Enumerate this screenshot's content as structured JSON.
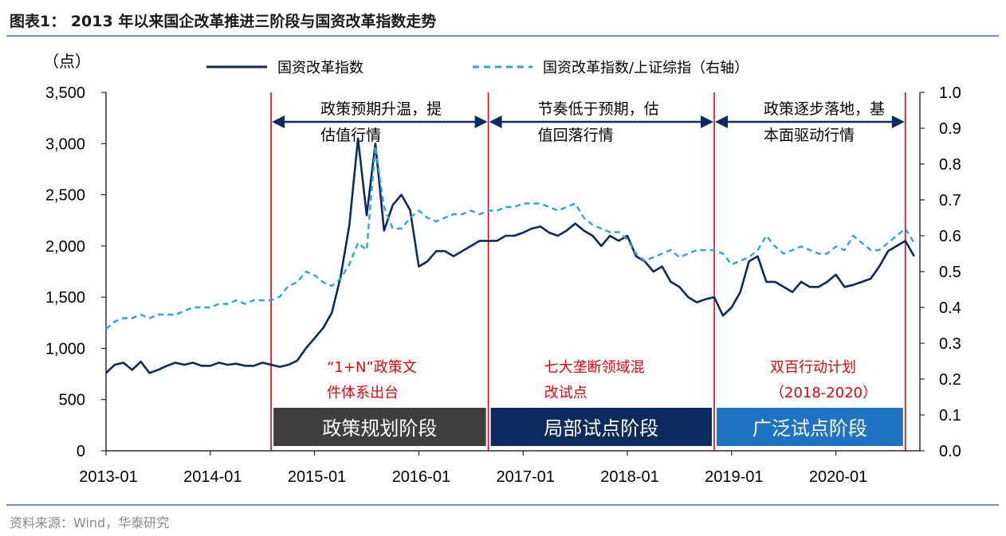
{
  "title": "图表1：    2013 年以来国企改革推进三阶段与国资改革指数走势",
  "source": "资料来源：Wind，华泰研究",
  "chart_data": {
    "type": "line",
    "y_left_unit": "（点）",
    "y_left_range": [
      0,
      3500
    ],
    "y_left_ticks": [
      "0",
      "500",
      "1,000",
      "1,500",
      "2,000",
      "2,500",
      "3,000",
      "3,500"
    ],
    "y_right_range": [
      0,
      1.0
    ],
    "y_right_ticks": [
      "0.0",
      "0.1",
      "0.2",
      "0.3",
      "0.4",
      "0.5",
      "0.6",
      "0.7",
      "0.8",
      "0.9",
      "1.0"
    ],
    "x_ticks": [
      "2013-01",
      "2014-01",
      "2015-01",
      "2016-01",
      "2017-01",
      "2018-01",
      "2019-01",
      "2020-01"
    ],
    "x_range": [
      "2013-01",
      "2020-10"
    ],
    "legend_placement": "top-center",
    "series": [
      {
        "name": "国资改革指数",
        "axis": "left",
        "color": "#0d2a5e",
        "style": "solid",
        "points": [
          [
            "2013-01",
            760
          ],
          [
            "2013-02",
            840
          ],
          [
            "2013-03",
            860
          ],
          [
            "2013-04",
            790
          ],
          [
            "2013-05",
            870
          ],
          [
            "2013-06",
            760
          ],
          [
            "2013-07",
            790
          ],
          [
            "2013-08",
            830
          ],
          [
            "2013-09",
            860
          ],
          [
            "2013-10",
            840
          ],
          [
            "2013-11",
            860
          ],
          [
            "2013-12",
            830
          ],
          [
            "2014-01",
            830
          ],
          [
            "2014-02",
            860
          ],
          [
            "2014-03",
            840
          ],
          [
            "2014-04",
            850
          ],
          [
            "2014-05",
            830
          ],
          [
            "2014-06",
            830
          ],
          [
            "2014-07",
            860
          ],
          [
            "2014-08",
            840
          ],
          [
            "2014-09",
            820
          ],
          [
            "2014-10",
            840
          ],
          [
            "2014-11",
            880
          ],
          [
            "2014-12",
            1000
          ],
          [
            "2015-01",
            1100
          ],
          [
            "2015-02",
            1200
          ],
          [
            "2015-03",
            1350
          ],
          [
            "2015-04",
            1700
          ],
          [
            "2015-05",
            2200
          ],
          [
            "2015-06",
            3050
          ],
          [
            "2015-07",
            2300
          ],
          [
            "2015-08",
            3000
          ],
          [
            "2015-09",
            2150
          ],
          [
            "2015-10",
            2400
          ],
          [
            "2015-11",
            2500
          ],
          [
            "2015-12",
            2350
          ],
          [
            "2016-01",
            1800
          ],
          [
            "2016-02",
            1850
          ],
          [
            "2016-03",
            1950
          ],
          [
            "2016-04",
            1950
          ],
          [
            "2016-05",
            1900
          ],
          [
            "2016-06",
            1950
          ],
          [
            "2016-07",
            2000
          ],
          [
            "2016-08",
            2050
          ],
          [
            "2016-09",
            2050
          ],
          [
            "2016-10",
            2050
          ],
          [
            "2016-11",
            2100
          ],
          [
            "2016-12",
            2100
          ],
          [
            "2017-01",
            2130
          ],
          [
            "2017-02",
            2170
          ],
          [
            "2017-03",
            2190
          ],
          [
            "2017-04",
            2130
          ],
          [
            "2017-05",
            2100
          ],
          [
            "2017-06",
            2150
          ],
          [
            "2017-07",
            2220
          ],
          [
            "2017-08",
            2150
          ],
          [
            "2017-09",
            2100
          ],
          [
            "2017-10",
            2000
          ],
          [
            "2017-11",
            2100
          ],
          [
            "2017-12",
            2050
          ],
          [
            "2018-01",
            2100
          ],
          [
            "2018-02",
            1900
          ],
          [
            "2018-03",
            1850
          ],
          [
            "2018-04",
            1750
          ],
          [
            "2018-05",
            1800
          ],
          [
            "2018-06",
            1650
          ],
          [
            "2018-07",
            1600
          ],
          [
            "2018-08",
            1500
          ],
          [
            "2018-09",
            1450
          ],
          [
            "2018-10",
            1480
          ],
          [
            "2018-11",
            1500
          ],
          [
            "2018-12",
            1320
          ],
          [
            "2019-01",
            1400
          ],
          [
            "2019-02",
            1550
          ],
          [
            "2019-03",
            1850
          ],
          [
            "2019-04",
            1900
          ],
          [
            "2019-05",
            1650
          ],
          [
            "2019-06",
            1650
          ],
          [
            "2019-07",
            1600
          ],
          [
            "2019-08",
            1550
          ],
          [
            "2019-09",
            1650
          ],
          [
            "2019-10",
            1600
          ],
          [
            "2019-11",
            1600
          ],
          [
            "2019-12",
            1650
          ],
          [
            "2020-01",
            1720
          ],
          [
            "2020-02",
            1600
          ],
          [
            "2020-03",
            1620
          ],
          [
            "2020-04",
            1650
          ],
          [
            "2020-05",
            1680
          ],
          [
            "2020-06",
            1800
          ],
          [
            "2020-07",
            1950
          ],
          [
            "2020-08",
            2000
          ],
          [
            "2020-09",
            2050
          ],
          [
            "2020-10",
            1900
          ]
        ]
      },
      {
        "name": "国资改革指数/上证综指（右轴）",
        "axis": "right",
        "color": "#29a3e4",
        "style": "dashed",
        "points": [
          [
            "2013-01",
            0.34
          ],
          [
            "2013-02",
            0.36
          ],
          [
            "2013-03",
            0.37
          ],
          [
            "2013-04",
            0.37
          ],
          [
            "2013-05",
            0.38
          ],
          [
            "2013-06",
            0.37
          ],
          [
            "2013-07",
            0.38
          ],
          [
            "2013-08",
            0.38
          ],
          [
            "2013-09",
            0.38
          ],
          [
            "2013-10",
            0.39
          ],
          [
            "2013-11",
            0.4
          ],
          [
            "2013-12",
            0.4
          ],
          [
            "2014-01",
            0.4
          ],
          [
            "2014-02",
            0.41
          ],
          [
            "2014-03",
            0.41
          ],
          [
            "2014-04",
            0.42
          ],
          [
            "2014-05",
            0.41
          ],
          [
            "2014-06",
            0.42
          ],
          [
            "2014-07",
            0.42
          ],
          [
            "2014-08",
            0.42
          ],
          [
            "2014-09",
            0.43
          ],
          [
            "2014-10",
            0.46
          ],
          [
            "2014-11",
            0.47
          ],
          [
            "2014-12",
            0.5
          ],
          [
            "2015-01",
            0.49
          ],
          [
            "2015-02",
            0.47
          ],
          [
            "2015-03",
            0.46
          ],
          [
            "2015-04",
            0.48
          ],
          [
            "2015-05",
            0.52
          ],
          [
            "2015-06",
            0.58
          ],
          [
            "2015-07",
            0.56
          ],
          [
            "2015-08",
            0.85
          ],
          [
            "2015-09",
            0.68
          ],
          [
            "2015-10",
            0.62
          ],
          [
            "2015-11",
            0.62
          ],
          [
            "2015-12",
            0.65
          ],
          [
            "2016-01",
            0.67
          ],
          [
            "2016-02",
            0.65
          ],
          [
            "2016-03",
            0.64
          ],
          [
            "2016-04",
            0.65
          ],
          [
            "2016-05",
            0.66
          ],
          [
            "2016-06",
            0.66
          ],
          [
            "2016-07",
            0.67
          ],
          [
            "2016-08",
            0.66
          ],
          [
            "2016-09",
            0.67
          ],
          [
            "2016-10",
            0.67
          ],
          [
            "2016-11",
            0.68
          ],
          [
            "2016-12",
            0.68
          ],
          [
            "2017-01",
            0.69
          ],
          [
            "2017-02",
            0.69
          ],
          [
            "2017-03",
            0.69
          ],
          [
            "2017-04",
            0.68
          ],
          [
            "2017-05",
            0.67
          ],
          [
            "2017-06",
            0.68
          ],
          [
            "2017-07",
            0.69
          ],
          [
            "2017-08",
            0.65
          ],
          [
            "2017-09",
            0.63
          ],
          [
            "2017-10",
            0.62
          ],
          [
            "2017-11",
            0.61
          ],
          [
            "2017-12",
            0.61
          ],
          [
            "2018-01",
            0.59
          ],
          [
            "2018-02",
            0.55
          ],
          [
            "2018-03",
            0.53
          ],
          [
            "2018-04",
            0.54
          ],
          [
            "2018-05",
            0.55
          ],
          [
            "2018-06",
            0.56
          ],
          [
            "2018-07",
            0.54
          ],
          [
            "2018-08",
            0.55
          ],
          [
            "2018-09",
            0.56
          ],
          [
            "2018-10",
            0.56
          ],
          [
            "2018-11",
            0.56
          ],
          [
            "2018-12",
            0.55
          ],
          [
            "2019-01",
            0.52
          ],
          [
            "2019-02",
            0.53
          ],
          [
            "2019-03",
            0.54
          ],
          [
            "2019-04",
            0.56
          ],
          [
            "2019-05",
            0.6
          ],
          [
            "2019-06",
            0.57
          ],
          [
            "2019-07",
            0.55
          ],
          [
            "2019-08",
            0.56
          ],
          [
            "2019-09",
            0.57
          ],
          [
            "2019-10",
            0.56
          ],
          [
            "2019-11",
            0.55
          ],
          [
            "2019-12",
            0.55
          ],
          [
            "2020-01",
            0.57
          ],
          [
            "2020-02",
            0.56
          ],
          [
            "2020-03",
            0.6
          ],
          [
            "2020-04",
            0.58
          ],
          [
            "2020-05",
            0.56
          ],
          [
            "2020-06",
            0.56
          ],
          [
            "2020-07",
            0.58
          ],
          [
            "2020-08",
            0.6
          ],
          [
            "2020-09",
            0.62
          ],
          [
            "2020-10",
            0.58
          ]
        ]
      }
    ],
    "phase_dividers": [
      "2014-08",
      "2016-09",
      "2018-11",
      "2020-09"
    ],
    "periods": [
      {
        "arrow": [
          "2014-08",
          "2016-09"
        ],
        "arrow_note": [
          "政策预期升温，提",
          "估值行情"
        ],
        "red_note": [
          "“1+N”政策文",
          "件体系出台"
        ],
        "label": "政策规划阶段",
        "color": "#3f3f3f"
      },
      {
        "arrow": [
          "2016-09",
          "2018-11"
        ],
        "arrow_note": [
          "节奏低于预期，估",
          "值回落行情"
        ],
        "red_note": [
          "七大垄断领域混",
          "改试点"
        ],
        "label": "局部试点阶段",
        "color": "#0d2a5e"
      },
      {
        "arrow": [
          "2018-11",
          "2020-09"
        ],
        "arrow_note": [
          "政策逐步落地，基",
          "本面驱动行情"
        ],
        "red_note": [
          "双百行动计划",
          "（2018-2020）"
        ],
        "label": "广泛试点阶段",
        "color": "#1f73c2"
      }
    ]
  }
}
